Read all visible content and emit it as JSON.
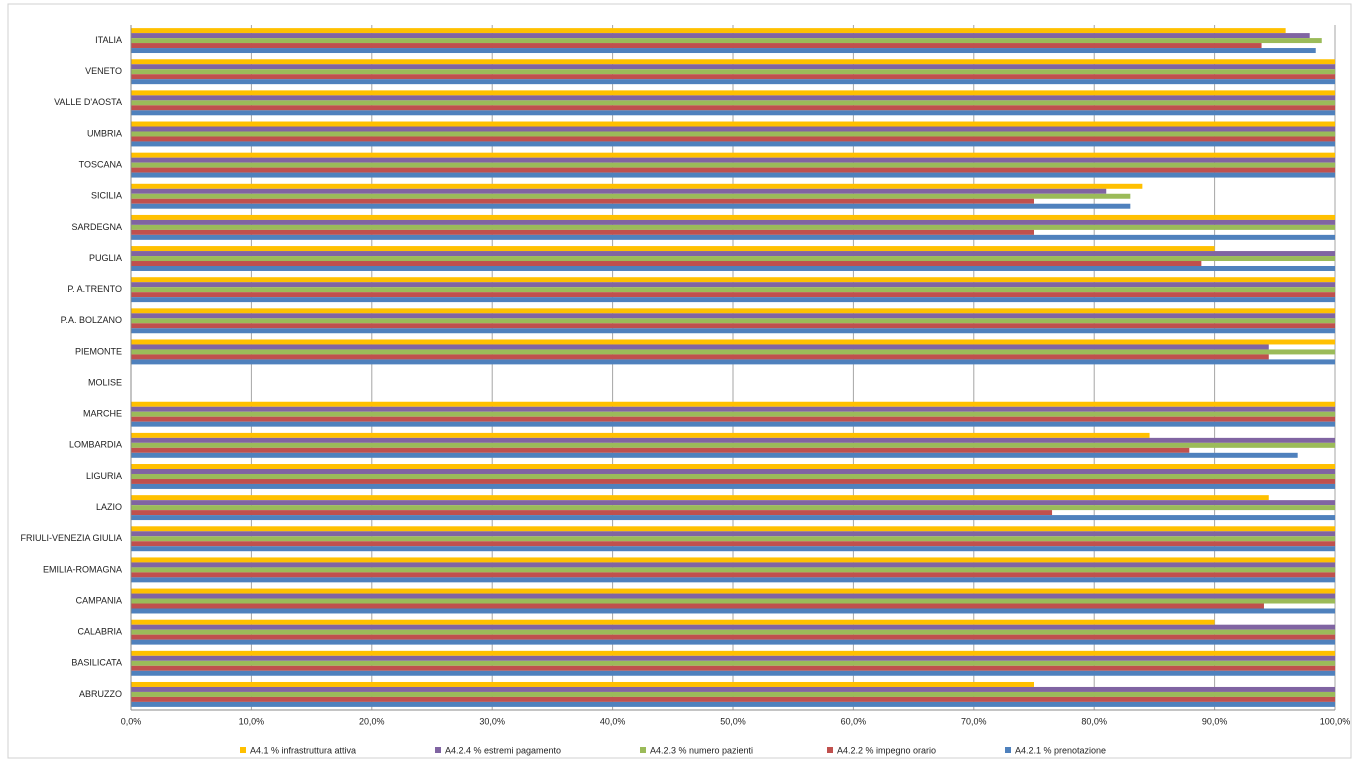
{
  "chart_data": {
    "type": "bar",
    "orientation": "horizontal",
    "categories": [
      "ITALIA",
      "VENETO",
      "VALLE D'AOSTA",
      "UMBRIA",
      "TOSCANA",
      "SICILIA",
      "SARDEGNA",
      "PUGLIA",
      "P. A.TRENTO",
      "P.A. BOLZANO",
      "PIEMONTE",
      "MOLISE",
      "MARCHE",
      "LOMBARDIA",
      "LIGURIA",
      "LAZIO",
      "FRIULI-VENEZIA GIULIA",
      "EMILIA-ROMAGNA",
      "CAMPANIA",
      "CALABRIA",
      "BASILICATA",
      "ABRUZZO"
    ],
    "series": [
      {
        "name": "A4.1 % infrastruttura attiva",
        "color": "#ffc000",
        "values": [
          95.9,
          100,
          100,
          100,
          100,
          84,
          100,
          90,
          100,
          100,
          100,
          null,
          100,
          84.6,
          100,
          94.5,
          100,
          100,
          100,
          90,
          100,
          75
        ]
      },
      {
        "name": "A4.2.4 % estremi pagamento",
        "color": "#8064a2",
        "values": [
          97.9,
          100,
          100,
          100,
          100,
          81,
          100,
          100,
          100,
          100,
          94.5,
          null,
          100,
          100,
          100,
          100,
          100,
          100,
          100,
          100,
          100,
          100
        ]
      },
      {
        "name": "A4.2.3 % numero pazienti",
        "color": "#9bbb59",
        "values": [
          98.9,
          100,
          100,
          100,
          100,
          83,
          100,
          100,
          100,
          100,
          100,
          null,
          100,
          100,
          100,
          100,
          100,
          100,
          100,
          100,
          100,
          100
        ]
      },
      {
        "name": "A4.2.2 % impegno orario",
        "color": "#c0504d",
        "values": [
          93.9,
          100,
          100,
          100,
          100,
          75,
          75,
          88.9,
          100,
          100,
          94.5,
          null,
          100,
          87.9,
          100,
          76.5,
          100,
          100,
          94.1,
          100,
          100,
          100
        ]
      },
      {
        "name": "A4.2.1 % prenotazione",
        "color": "#4f81bd",
        "values": [
          98.4,
          100,
          100,
          100,
          100,
          83,
          100,
          100,
          100,
          100,
          100,
          null,
          100,
          96.9,
          100,
          100,
          100,
          100,
          100,
          100,
          100,
          100
        ]
      }
    ],
    "xlim": [
      0,
      100
    ],
    "xticks": [
      {
        "value": 0,
        "label": "0,0%"
      },
      {
        "value": 10,
        "label": "10,0%"
      },
      {
        "value": 20,
        "label": "20,0%"
      },
      {
        "value": 30,
        "label": "30,0%"
      },
      {
        "value": 40,
        "label": "40,0%"
      },
      {
        "value": 50,
        "label": "50,0%"
      },
      {
        "value": 60,
        "label": "60,0%"
      },
      {
        "value": 70,
        "label": "70,0%"
      },
      {
        "value": 80,
        "label": "80,0%"
      },
      {
        "value": 90,
        "label": "90,0%"
      },
      {
        "value": 100,
        "label": "100,0%"
      }
    ],
    "grid": true,
    "legend": "bottom"
  }
}
